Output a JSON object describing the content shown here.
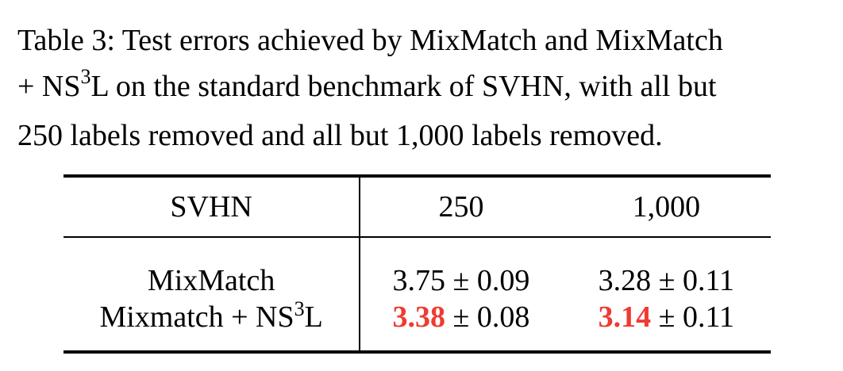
{
  "caption": {
    "line1": "Table 3: Test errors achieved by MixMatch and MixMatch",
    "line2_pre": "+ NS",
    "line2_sup": "3",
    "line2_post": "L on the standard benchmark of SVHN, with all but",
    "line3": "250 labels removed and all but 1,000 labels removed."
  },
  "table": {
    "headers": [
      "SVHN",
      "250",
      "1,000"
    ],
    "rows": [
      {
        "name": "MixMatch",
        "cells": [
          {
            "mean": "3.75",
            "pm": " ± 0.09",
            "best": false
          },
          {
            "mean": "3.28",
            "pm": " ± 0.11",
            "best": false
          }
        ]
      },
      {
        "name_pre": "Mixmatch + NS",
        "name_sup": "3",
        "name_post": "L",
        "cells": [
          {
            "mean": "3.38",
            "pm": " ± 0.08",
            "best": true
          },
          {
            "mean": "3.14",
            "pm": " ± 0.11",
            "best": true
          }
        ]
      }
    ]
  },
  "colors": {
    "highlight": "#ef3b32",
    "text": "#000000",
    "background": "#ffffff"
  }
}
